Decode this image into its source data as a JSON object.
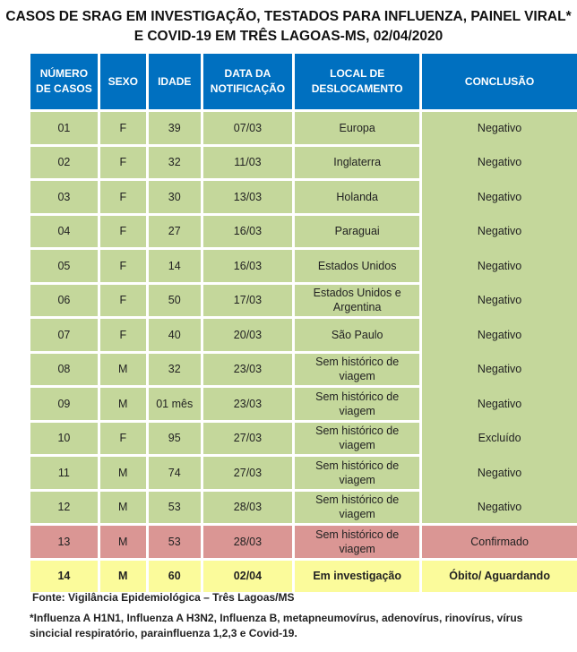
{
  "title_line1": "CASOS DE SRAG EM INVESTIGAÇÃO, TESTADOS PARA INFLUENZA, PAINEL VIRAL*",
  "title_line2": "E COVID-19 EM TRÊS LAGOAS-MS, 02/04/2020",
  "headers": [
    "NÚMERO DE CASOS",
    "SEXO",
    "IDADE",
    "DATA DA NOTIFICAÇÃO",
    "LOCAL DE DESLOCAMENTO",
    "CONCLUSÃO"
  ],
  "rows": [
    [
      "01",
      "F",
      "39",
      "07/03",
      "Europa",
      "Negativo"
    ],
    [
      "02",
      "F",
      "32",
      "11/03",
      "Inglaterra",
      "Negativo"
    ],
    [
      "03",
      "F",
      "30",
      "13/03",
      "Holanda",
      "Negativo"
    ],
    [
      "04",
      "F",
      "27",
      "16/03",
      "Paraguai",
      "Negativo"
    ],
    [
      "05",
      "F",
      "14",
      "16/03",
      "Estados Unidos",
      "Negativo"
    ],
    [
      "06",
      "F",
      "50",
      "17/03",
      "Estados Unidos e Argentina",
      "Negativo"
    ],
    [
      "07",
      "F",
      "40",
      "20/03",
      "São Paulo",
      "Negativo"
    ],
    [
      "08",
      "M",
      "32",
      "23/03",
      "Sem histórico de viagem",
      "Negativo"
    ],
    [
      "09",
      "M",
      "01 mês",
      "23/03",
      "Sem histórico de viagem",
      "Negativo"
    ],
    [
      "10",
      "F",
      "95",
      "27/03",
      "Sem histórico de viagem",
      "Excluído"
    ],
    [
      "11",
      "M",
      "74",
      "27/03",
      "Sem histórico de viagem",
      "Negativo"
    ],
    [
      "12",
      "M",
      "53",
      "28/03",
      "Sem histórico de viagem",
      "Negativo"
    ],
    [
      "13",
      "M",
      "53",
      "28/03",
      "Sem histórico de viagem",
      "Confirmado"
    ],
    [
      "14",
      "M",
      "60",
      "02/04",
      "Em investigação",
      "Óbito/ Aguardando"
    ]
  ],
  "source": "Fonte: Vigilância Epidemiológica – Três Lagoas/MS",
  "note": "*Influenza A H1N1, Influenza A H3N2, Influenza B, metapneumovírus, adenovírus, rinovírus, vírus sincicial respiratório,  parainfluenza 1,2,3 e Covid-19.",
  "colors": {
    "header": "#0070c0",
    "negative": "#c4d79b",
    "confirmed": "#da9694",
    "pending": "#fbfb9b"
  }
}
